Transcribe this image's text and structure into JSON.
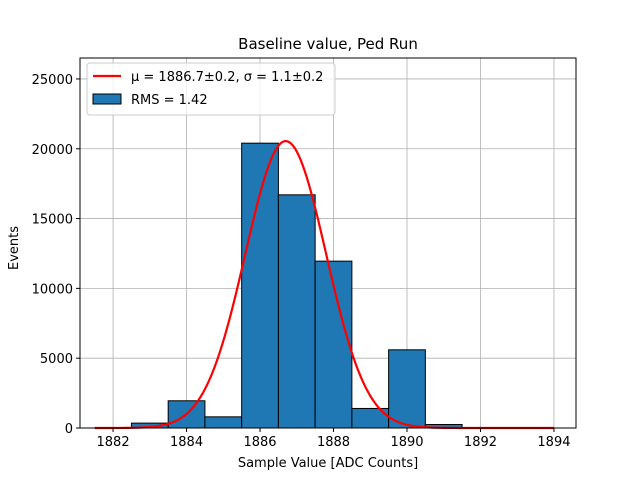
{
  "chart_data": {
    "type": "bar",
    "title": "Baseline value, Ped Run",
    "xlabel": "Sample Value [ADC Counts]",
    "ylabel": "Events",
    "xlim": [
      1881.1,
      1894.6
    ],
    "ylim": [
      0,
      26500
    ],
    "xticks": [
      1882,
      1884,
      1886,
      1888,
      1890,
      1892,
      1894
    ],
    "yticks": [
      0,
      5000,
      10000,
      15000,
      20000,
      25000
    ],
    "grid": true,
    "legend_position": "top-left",
    "bar_color": "#1f77b4",
    "fit_color": "#ff0000",
    "histogram": {
      "name": "RMS = 1.42",
      "bins": [
        {
          "x0": 1882.5,
          "x1": 1883.5,
          "value": 350
        },
        {
          "x0": 1883.5,
          "x1": 1884.5,
          "value": 1950
        },
        {
          "x0": 1884.5,
          "x1": 1885.5,
          "value": 800
        },
        {
          "x0": 1885.5,
          "x1": 1886.5,
          "value": 20400
        },
        {
          "x0": 1886.5,
          "x1": 1887.5,
          "value": 16700
        },
        {
          "x0": 1887.5,
          "x1": 1888.5,
          "value": 11950
        },
        {
          "x0": 1888.5,
          "x1": 1889.5,
          "value": 1400
        },
        {
          "x0": 1889.5,
          "x1": 1890.5,
          "value": 5600
        },
        {
          "x0": 1890.5,
          "x1": 1891.5,
          "value": 250
        }
      ]
    },
    "fit": {
      "name": "μ = 1886.7±0.2, σ = 1.1±0.2",
      "type": "gaussian",
      "mu": 1886.7,
      "sigma": 1.1,
      "amplitude": 20550,
      "x_range": [
        1881.5,
        1894.0
      ]
    }
  }
}
